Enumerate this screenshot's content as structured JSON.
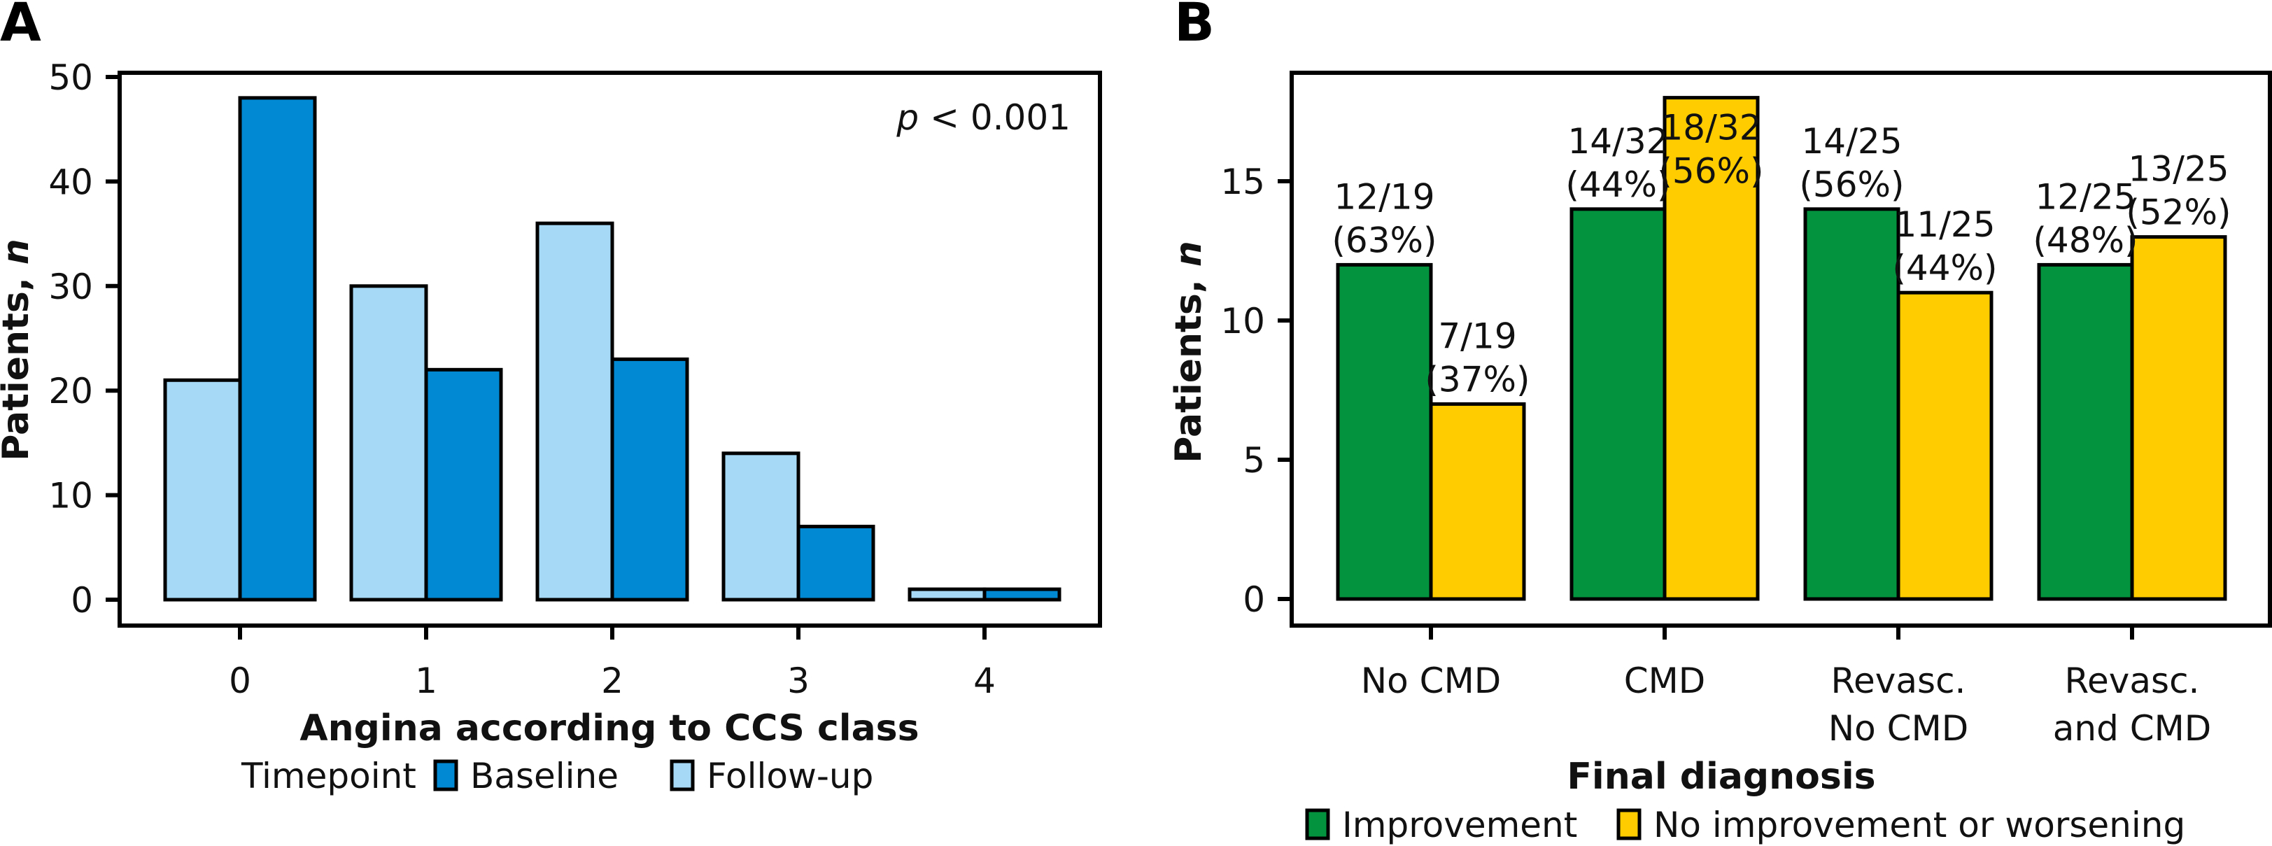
{
  "chart_data": [
    {
      "panel": "A",
      "type": "bar",
      "title": "",
      "xlabel": "Angina according to CCS class",
      "ylabel": "Patients, n",
      "ylabel_main": "Patients, ",
      "ylabel_italic": "n",
      "categories": [
        "0",
        "1",
        "2",
        "3",
        "4"
      ],
      "ylim": [
        0,
        50
      ],
      "yticks": [
        0,
        10,
        20,
        30,
        40,
        50
      ],
      "grid": false,
      "annotation": {
        "italic": "p",
        "text": " < 0.001",
        "position": "top-right"
      },
      "legend": {
        "title": "Timepoint",
        "placement": "bottom"
      },
      "series": [
        {
          "name": "Follow-up",
          "color": "#A5D9F5",
          "values": [
            21,
            30,
            36,
            14,
            1
          ]
        },
        {
          "name": "Baseline",
          "color": "#0289D3",
          "values": [
            48,
            22,
            23,
            7,
            1
          ]
        }
      ],
      "legend_order": [
        "Baseline",
        "Follow-up"
      ]
    },
    {
      "panel": "B",
      "type": "bar",
      "title": "",
      "xlabel": "Final diagnosis",
      "ylabel": "Patients, n",
      "ylabel_main": "Patients, ",
      "ylabel_italic": "n",
      "categories": [
        [
          "No CMD"
        ],
        [
          "CMD"
        ],
        [
          "Revasc.",
          "No CMD"
        ],
        [
          "Revasc.",
          "and CMD"
        ]
      ],
      "ylim": [
        0,
        18
      ],
      "yticks": [
        0,
        5,
        10,
        15
      ],
      "grid": false,
      "legend": {
        "title": "",
        "placement": "bottom"
      },
      "series": [
        {
          "name": "Improvement",
          "color": "#03933F",
          "values": [
            12,
            14,
            14,
            12
          ],
          "labels": [
            [
              "12/19",
              "(63%)"
            ],
            [
              "14/32",
              "(44%)"
            ],
            [
              "14/25",
              "(56%)"
            ],
            [
              "12/25",
              "(48%)"
            ]
          ]
        },
        {
          "name": "No improvement or worsening",
          "color": "#FFCC00",
          "values": [
            7,
            18,
            11,
            13
          ],
          "labels": [
            [
              "7/19",
              "(37%)"
            ],
            [
              "18/32",
              "(56%)"
            ],
            [
              "11/25",
              "(44%)"
            ],
            [
              "13/25",
              "(52%)"
            ]
          ]
        }
      ],
      "legend_order": [
        "Improvement",
        "No improvement or worsening"
      ]
    }
  ]
}
